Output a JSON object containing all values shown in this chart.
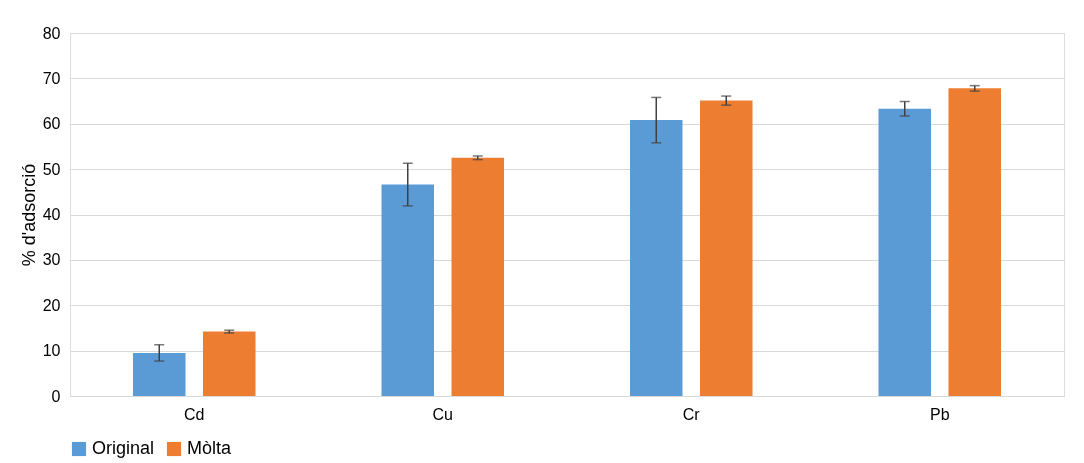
{
  "chart_data": {
    "type": "bar",
    "ylabel": "% d'adsorció",
    "categories": [
      "Cd",
      "Cu",
      "Cr",
      "Pb"
    ],
    "series": [
      {
        "name": "Original",
        "color": "#5b9bd5",
        "values": [
          9.5,
          46.6,
          60.8,
          63.3
        ],
        "errors": [
          1.8,
          4.7,
          5.0,
          1.6
        ]
      },
      {
        "name": "Mòlta",
        "color": "#ed7d31",
        "values": [
          14.2,
          52.5,
          65.1,
          67.8
        ],
        "errors": [
          0.3,
          0.4,
          1.0,
          0.6
        ]
      }
    ],
    "ylim": [
      0,
      80
    ],
    "yticks": [
      0,
      10,
      20,
      30,
      40,
      50,
      60,
      70,
      80
    ],
    "grid": "y",
    "legend": "bottom"
  }
}
